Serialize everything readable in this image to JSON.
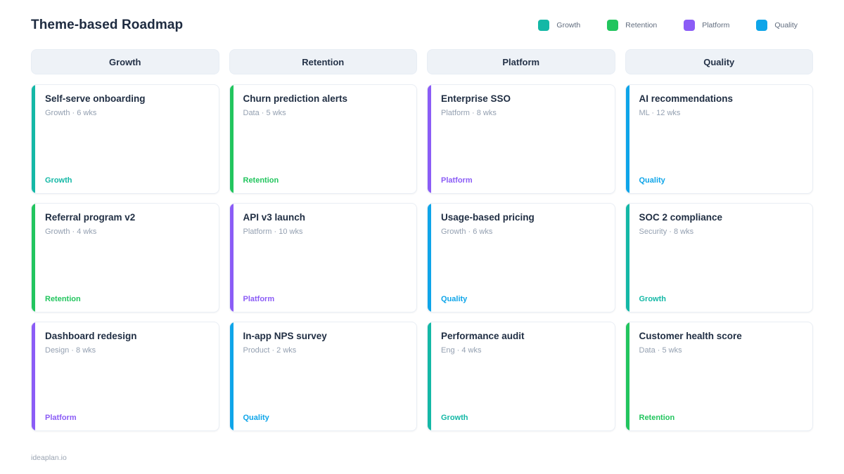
{
  "header": {
    "title": "Theme-based Roadmap"
  },
  "theme_colors": {
    "growth": "#14b8a6",
    "retention": "#22c55e",
    "platform": "#8b5cf6",
    "quality": "#0ea5e9"
  },
  "legend": [
    {
      "label": "Growth",
      "color": "#14b8a6"
    },
    {
      "label": "Retention",
      "color": "#22c55e"
    },
    {
      "label": "Platform",
      "color": "#8b5cf6"
    },
    {
      "label": "Quality",
      "color": "#0ea5e9"
    }
  ],
  "columns": [
    {
      "header": "Growth",
      "cards": [
        {
          "title": "Self-serve onboarding",
          "meta": "Growth · 6 wks",
          "tag": "Growth",
          "color": "#14b8a6"
        },
        {
          "title": "Referral program v2",
          "meta": "Growth · 4 wks",
          "tag": "Retention",
          "color": "#22c55e"
        },
        {
          "title": "Dashboard redesign",
          "meta": "Design · 8 wks",
          "tag": "Platform",
          "color": "#8b5cf6"
        }
      ]
    },
    {
      "header": "Retention",
      "cards": [
        {
          "title": "Churn prediction alerts",
          "meta": "Data · 5 wks",
          "tag": "Retention",
          "color": "#22c55e"
        },
        {
          "title": "API v3 launch",
          "meta": "Platform · 10 wks",
          "tag": "Platform",
          "color": "#8b5cf6"
        },
        {
          "title": "In-app NPS survey",
          "meta": "Product · 2 wks",
          "tag": "Quality",
          "color": "#0ea5e9"
        }
      ]
    },
    {
      "header": "Platform",
      "cards": [
        {
          "title": "Enterprise SSO",
          "meta": "Platform · 8 wks",
          "tag": "Platform",
          "color": "#8b5cf6"
        },
        {
          "title": "Usage-based pricing",
          "meta": "Growth · 6 wks",
          "tag": "Quality",
          "color": "#0ea5e9"
        },
        {
          "title": "Performance audit",
          "meta": "Eng · 4 wks",
          "tag": "Growth",
          "color": "#14b8a6"
        }
      ]
    },
    {
      "header": "Quality",
      "cards": [
        {
          "title": "AI recommendations",
          "meta": "ML · 12 wks",
          "tag": "Quality",
          "color": "#0ea5e9"
        },
        {
          "title": "SOC 2 compliance",
          "meta": "Security · 8 wks",
          "tag": "Growth",
          "color": "#14b8a6"
        },
        {
          "title": "Customer health score",
          "meta": "Data · 5 wks",
          "tag": "Retention",
          "color": "#22c55e"
        }
      ]
    }
  ],
  "footer": {
    "text": "ideaplan.io"
  }
}
